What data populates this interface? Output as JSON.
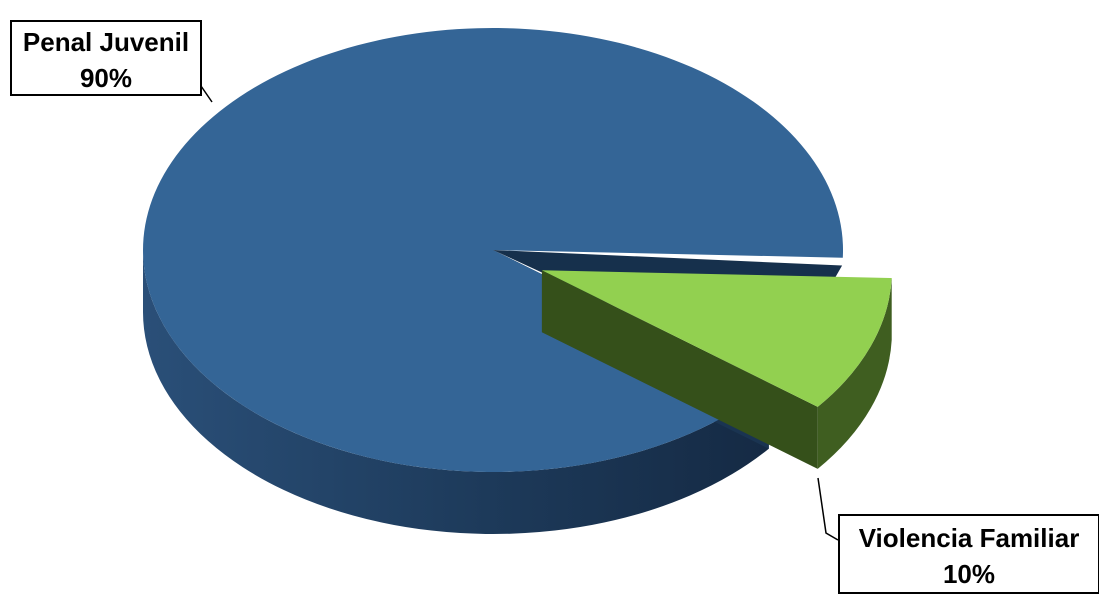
{
  "chart_data": {
    "type": "pie",
    "three_d": true,
    "categories": [
      "Penal Juvenil",
      "Violencia Familiar"
    ],
    "values": [
      90,
      10
    ],
    "data_labels": [
      {
        "category": "Penal Juvenil",
        "percent": "90%"
      },
      {
        "category": "Violencia Familiar",
        "percent": "10%"
      }
    ],
    "colors": {
      "Penal Juvenil": "#346596",
      "Violencia Familiar": "#92D050"
    },
    "exploded_slice": "Violencia Familiar"
  }
}
